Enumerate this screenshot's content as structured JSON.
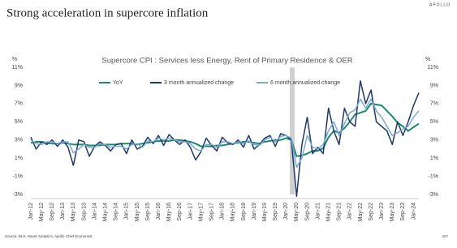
{
  "header": {
    "title": "Strong acceleration in supercore inflation",
    "brand": "APOLLO"
  },
  "footer": {
    "source": "Source: BLS, Haver Analytics, Apollo Chief Economist",
    "page": "427"
  },
  "chart_data": {
    "type": "line",
    "title": "Supercore CPI : Services less Energy, Rent of Primary Residence & OER",
    "y_axis_label": "%",
    "y2_axis_label": "%",
    "categories": [
      "Jan-12",
      null,
      "May-12",
      null,
      "Sep-12",
      null,
      "Jan-13",
      null,
      "May-13",
      null,
      "Sep-13",
      null,
      "Jan-14",
      null,
      "May-14",
      null,
      "Sep-14",
      null,
      "Jan-15",
      null,
      "May-15",
      null,
      "Sep-15",
      null,
      "Jan-16",
      null,
      "May-16",
      null,
      "Sep-16",
      null,
      "Jan-17",
      null,
      "May-17",
      null,
      "Sep-17",
      null,
      "Jan-18",
      null,
      "May-18",
      null,
      "Sep-18",
      null,
      "Jan-19",
      null,
      "May-19",
      null,
      "Sep-19",
      null,
      "Jan-20",
      null,
      "May-20",
      null,
      "Sep-20",
      null,
      "Jan-21",
      null,
      "May-21",
      null,
      "Sep-21",
      null,
      "Jan-22",
      null,
      "May-22",
      null,
      "Sep-22",
      null,
      "Jan-23",
      null,
      "May-23",
      null,
      "Sep-23",
      null,
      "Jan-24",
      null
    ],
    "series": [
      {
        "name": "YoY",
        "color": "#1a8a6e",
        "width": 2,
        "values": [
          2.7,
          2.8,
          2.8,
          2.7,
          2.6,
          2.6,
          2.7,
          2.6,
          2.5,
          2.5,
          2.5,
          2.4,
          2.4,
          2.4,
          2.5,
          2.5,
          2.5,
          2.6,
          2.6,
          2.6,
          2.5,
          2.6,
          2.7,
          2.8,
          2.9,
          2.9,
          2.9,
          3.0,
          3.0,
          2.9,
          2.8,
          2.6,
          2.3,
          2.3,
          2.3,
          2.4,
          2.4,
          2.5,
          2.6,
          2.7,
          2.8,
          2.8,
          2.7,
          2.6,
          2.8,
          2.9,
          3.0,
          3.0,
          3.2,
          3.0,
          1.2,
          1.3,
          1.5,
          1.8,
          1.8,
          2.1,
          3.3,
          4.0,
          3.8,
          4.3,
          5.0,
          5.8,
          6.0,
          6.2,
          7.0,
          6.9,
          6.8,
          6.2,
          5.6,
          4.9,
          4.5,
          4.0,
          4.4,
          4.8
        ]
      },
      {
        "name": "3 month annualized change",
        "color": "#1f3864",
        "width": 1.5,
        "values": [
          3.3,
          2.0,
          2.8,
          2.5,
          3.0,
          2.3,
          3.0,
          2.2,
          0.2,
          3.0,
          2.8,
          1.2,
          2.3,
          2.8,
          2.4,
          1.8,
          2.5,
          2.6,
          1.5,
          3.0,
          2.0,
          2.3,
          3.3,
          2.6,
          3.5,
          2.4,
          3.6,
          3.0,
          2.5,
          3.0,
          2.2,
          0.8,
          1.7,
          3.2,
          2.4,
          1.8,
          3.3,
          2.7,
          2.5,
          3.0,
          2.2,
          3.5,
          2.0,
          2.5,
          3.2,
          3.5,
          2.3,
          3.7,
          3.5,
          3.0,
          -3.2,
          2.5,
          5.5,
          1.5,
          2.2,
          1.5,
          6.5,
          4.0,
          2.5,
          6.5,
          5.0,
          4.5,
          9.5,
          7.0,
          8.5,
          5.0,
          4.5,
          4.0,
          2.5,
          5.0,
          3.5,
          5.0,
          6.8,
          8.2
        ]
      },
      {
        "name": "6 month annualized change",
        "color": "#7aa6d8",
        "width": 1.5,
        "values": [
          3.0,
          2.6,
          2.5,
          2.8,
          2.8,
          2.6,
          2.8,
          2.8,
          1.6,
          2.0,
          2.5,
          2.2,
          2.2,
          2.6,
          2.5,
          2.2,
          2.3,
          2.3,
          2.0,
          2.5,
          2.6,
          2.2,
          2.9,
          2.8,
          3.2,
          3.0,
          3.2,
          3.0,
          2.8,
          2.8,
          2.6,
          2.0,
          1.8,
          2.5,
          2.5,
          2.2,
          2.8,
          2.8,
          2.6,
          2.8,
          2.6,
          2.9,
          2.5,
          2.4,
          3.0,
          3.3,
          2.8,
          3.4,
          3.5,
          3.2,
          0.0,
          1.0,
          3.5,
          2.2,
          2.0,
          2.5,
          4.0,
          5.0,
          3.5,
          4.8,
          6.0,
          6.3,
          7.5,
          6.5,
          7.5,
          6.2,
          5.5,
          4.5,
          3.5,
          3.8,
          4.2,
          4.5,
          5.5,
          6.2
        ]
      }
    ],
    "ylim": [
      -3,
      11
    ],
    "y2lim": [
      -3,
      11
    ],
    "yticks": [
      {
        "value": -3,
        "label": "-3%"
      },
      {
        "value": -1,
        "label": "-1%"
      },
      {
        "value": 1,
        "label": "1%"
      },
      {
        "value": 3,
        "label": "3%"
      },
      {
        "value": 5,
        "label": "5%"
      },
      {
        "value": 7,
        "label": "7%"
      },
      {
        "value": 9,
        "label": "9%"
      },
      {
        "value": 11,
        "label": "11%"
      }
    ],
    "y2ticks": [
      {
        "value": -3,
        "label": "-3%"
      },
      {
        "value": -1,
        "label": "-1%"
      },
      {
        "value": 1,
        "label": "1%"
      },
      {
        "value": 3,
        "label": "3%"
      },
      {
        "value": 5,
        "label": "5%"
      },
      {
        "value": 7,
        "label": "7%"
      },
      {
        "value": 9,
        "label": "9%"
      },
      {
        "value": 11,
        "label": "11%"
      }
    ],
    "grid": false
  }
}
